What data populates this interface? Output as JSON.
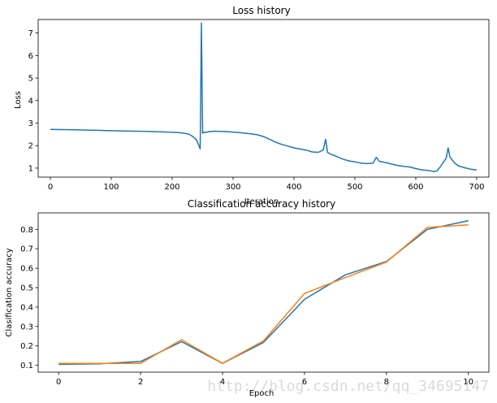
{
  "chart_data": [
    {
      "type": "line",
      "title": "Loss history",
      "xlabel": "Iteration",
      "ylabel": "Loss",
      "xlim": [
        -20,
        720
      ],
      "ylim": [
        0.6,
        7.6
      ],
      "xticks": [
        0,
        100,
        200,
        300,
        400,
        500,
        600,
        700
      ],
      "yticks": [
        1,
        2,
        3,
        4,
        5,
        6,
        7
      ],
      "grid": false,
      "series": [
        {
          "color": "#1f77b4",
          "x": [
            0,
            20,
            40,
            60,
            80,
            100,
            120,
            140,
            160,
            180,
            200,
            210,
            220,
            228,
            234,
            240,
            244,
            246,
            248,
            250,
            252,
            255,
            260,
            270,
            280,
            290,
            300,
            310,
            320,
            330,
            340,
            350,
            360,
            370,
            380,
            390,
            400,
            410,
            420,
            430,
            440,
            448,
            452,
            455,
            460,
            470,
            480,
            490,
            500,
            510,
            520,
            530,
            535,
            540,
            550,
            560,
            570,
            580,
            590,
            600,
            610,
            620,
            630,
            635,
            640,
            645,
            650,
            653,
            656,
            660,
            665,
            670,
            680,
            690,
            700
          ],
          "values": [
            2.72,
            2.71,
            2.7,
            2.69,
            2.68,
            2.66,
            2.65,
            2.64,
            2.63,
            2.61,
            2.59,
            2.58,
            2.55,
            2.5,
            2.4,
            2.25,
            2.0,
            1.85,
            7.45,
            2.55,
            2.6,
            2.58,
            2.62,
            2.64,
            2.63,
            2.62,
            2.6,
            2.58,
            2.55,
            2.52,
            2.48,
            2.4,
            2.28,
            2.15,
            2.05,
            1.98,
            1.9,
            1.85,
            1.8,
            1.72,
            1.7,
            1.8,
            2.28,
            1.7,
            1.62,
            1.52,
            1.4,
            1.32,
            1.28,
            1.22,
            1.2,
            1.22,
            1.48,
            1.3,
            1.25,
            1.18,
            1.12,
            1.08,
            1.05,
            0.98,
            0.92,
            0.9,
            0.85,
            0.88,
            1.05,
            1.25,
            1.45,
            1.9,
            1.5,
            1.35,
            1.2,
            1.1,
            1.02,
            0.95,
            0.92
          ]
        }
      ]
    },
    {
      "type": "line",
      "title": "Classification accuracy history",
      "xlabel": "Epoch",
      "ylabel": "Clasification accuracy",
      "xlim": [
        -0.5,
        10.5
      ],
      "ylim": [
        0.065,
        0.885
      ],
      "xticks": [
        0,
        2,
        4,
        6,
        8,
        10
      ],
      "yticks": [
        0.1,
        0.2,
        0.3,
        0.4,
        0.5,
        0.6,
        0.7,
        0.8
      ],
      "ytick_labels": [
        "0.1",
        "0.2",
        "0.3",
        "0.4",
        "0.5",
        "0.6",
        "0.7",
        "0.8"
      ],
      "grid": false,
      "series": [
        {
          "color": "#1f77b4",
          "x": [
            0,
            1,
            2,
            3,
            4,
            5,
            6,
            7,
            8,
            9,
            10
          ],
          "values": [
            0.105,
            0.108,
            0.12,
            0.222,
            0.11,
            0.218,
            0.44,
            0.566,
            0.635,
            0.8,
            0.845
          ]
        },
        {
          "color": "#ff7f0e",
          "x": [
            0,
            1,
            2,
            3,
            4,
            5,
            6,
            7,
            8,
            9,
            10
          ],
          "values": [
            0.11,
            0.11,
            0.11,
            0.232,
            0.11,
            0.226,
            0.47,
            0.552,
            0.632,
            0.81,
            0.823
          ]
        }
      ]
    }
  ],
  "watermark": "http://blog.csdn.net/qq_34695147"
}
